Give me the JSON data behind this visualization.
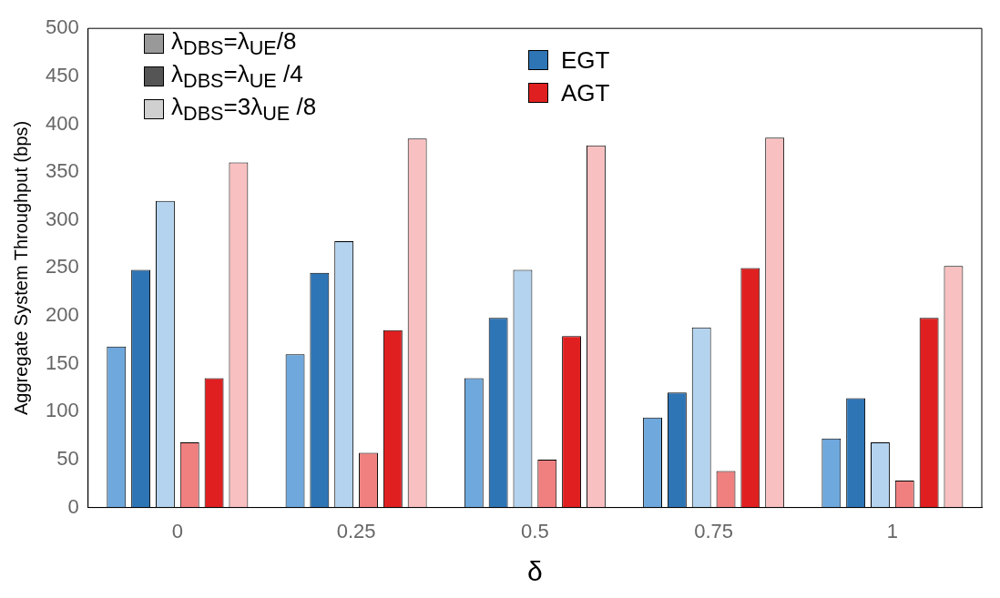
{
  "chart_data": {
    "type": "bar",
    "xlabel": "δ",
    "ylabel": "Aggregate System Throughput (bps)",
    "categories": [
      "0",
      "0.25",
      "0.5",
      "0.75",
      "1"
    ],
    "series": [
      {
        "color": "#6fa8dc",
        "values": [
          168,
          160,
          135,
          94,
          72
        ]
      },
      {
        "color": "#2e75b6",
        "values": [
          248,
          245,
          198,
          120,
          114
        ]
      },
      {
        "color": "#b4d3ee",
        "values": [
          320,
          278,
          248,
          188,
          68
        ]
      },
      {
        "color": "#f08080",
        "values": [
          68,
          57,
          50,
          38,
          28
        ]
      },
      {
        "color": "#e02020",
        "values": [
          135,
          185,
          179,
          250,
          198
        ]
      },
      {
        "color": "#f8c0c0",
        "values": [
          360,
          385,
          378,
          386,
          252
        ]
      }
    ],
    "annotations": [
      "λ$_{DBS}$=λ$_{UE}$/8",
      "λ$_{DBS}$=λ$_{UE}$ /4",
      "λ$_{DBS}$=3λ$_{UE}$ /8",
      "EGT",
      "AGT"
    ],
    "ylim": [
      0,
      500
    ],
    "yticks": [
      0,
      50,
      100,
      150,
      200,
      250,
      300,
      350,
      400,
      450,
      500
    ],
    "grid": false
  }
}
